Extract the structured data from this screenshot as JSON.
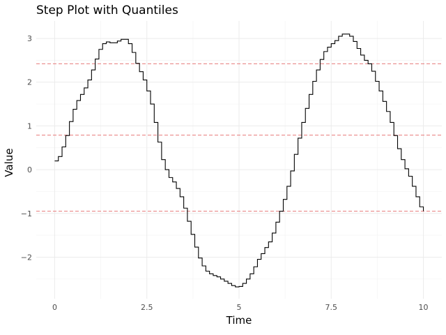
{
  "chart_data": {
    "type": "line",
    "subtype": "step",
    "title": "Step Plot with Quantiles",
    "xlabel": "Time",
    "ylabel": "Value",
    "xlim": [
      -0.5,
      10.5
    ],
    "ylim": [
      -2.95,
      3.4
    ],
    "x_ticks": [
      0,
      2.5,
      5,
      7.5,
      10
    ],
    "x_tick_labels": [
      "0",
      "2.5",
      "5",
      "7.5",
      "10"
    ],
    "y_ticks": [
      -2,
      -1,
      0,
      1,
      2,
      3
    ],
    "y_tick_labels": [
      "−2",
      "−1",
      "0",
      "1",
      "2",
      "3"
    ],
    "grid": true,
    "series": [
      {
        "color": "#000000",
        "x": [
          0,
          0.1,
          0.2,
          0.3,
          0.4,
          0.5,
          0.6,
          0.7,
          0.8,
          0.9,
          1.0,
          1.1,
          1.2,
          1.3,
          1.4,
          1.5,
          1.6,
          1.7,
          1.8,
          1.9,
          2.0,
          2.1,
          2.2,
          2.3,
          2.4,
          2.5,
          2.6,
          2.7,
          2.8,
          2.9,
          3.0,
          3.1,
          3.2,
          3.3,
          3.4,
          3.5,
          3.6,
          3.7,
          3.8,
          3.9,
          4.0,
          4.1,
          4.2,
          4.3,
          4.4,
          4.5,
          4.6,
          4.7,
          4.8,
          4.9,
          5.0,
          5.1,
          5.2,
          5.3,
          5.4,
          5.5,
          5.6,
          5.7,
          5.8,
          5.9,
          6.0,
          6.1,
          6.2,
          6.3,
          6.4,
          6.5,
          6.6,
          6.7,
          6.8,
          6.9,
          7.0,
          7.1,
          7.2,
          7.3,
          7.4,
          7.5,
          7.6,
          7.7,
          7.8,
          7.9,
          8.0,
          8.1,
          8.2,
          8.3,
          8.4,
          8.5,
          8.6,
          8.7,
          8.8,
          8.9,
          9.0,
          9.1,
          9.2,
          9.3,
          9.4,
          9.5,
          9.6,
          9.7,
          9.8,
          9.9,
          10.0
        ],
        "y": [
          0.2,
          0.3,
          0.52,
          0.78,
          1.1,
          1.38,
          1.58,
          1.72,
          1.87,
          2.05,
          2.28,
          2.53,
          2.75,
          2.88,
          2.92,
          2.9,
          2.9,
          2.94,
          2.98,
          2.98,
          2.88,
          2.68,
          2.43,
          2.24,
          2.05,
          1.8,
          1.5,
          1.08,
          0.63,
          0.23,
          0.0,
          -0.18,
          -0.28,
          -0.43,
          -0.62,
          -0.88,
          -1.18,
          -1.48,
          -1.77,
          -2.02,
          -2.2,
          -2.32,
          -2.38,
          -2.42,
          -2.45,
          -2.5,
          -2.55,
          -2.6,
          -2.65,
          -2.68,
          -2.67,
          -2.6,
          -2.5,
          -2.38,
          -2.22,
          -2.05,
          -1.92,
          -1.78,
          -1.65,
          -1.45,
          -1.2,
          -0.95,
          -0.68,
          -0.38,
          -0.03,
          0.35,
          0.72,
          1.08,
          1.4,
          1.72,
          2.02,
          2.28,
          2.52,
          2.7,
          2.8,
          2.88,
          2.95,
          3.05,
          3.1,
          3.1,
          3.05,
          2.93,
          2.77,
          2.62,
          2.5,
          2.42,
          2.25,
          2.02,
          1.8,
          1.56,
          1.33,
          1.08,
          0.78,
          0.48,
          0.23,
          0.02,
          -0.15,
          -0.38,
          -0.62,
          -0.85,
          -0.95
        ]
      }
    ],
    "quantiles": [
      {
        "value": 2.42,
        "color": "#e8797a"
      },
      {
        "value": 0.79,
        "color": "#e8797a"
      },
      {
        "value": -0.95,
        "color": "#e8797a"
      }
    ]
  }
}
